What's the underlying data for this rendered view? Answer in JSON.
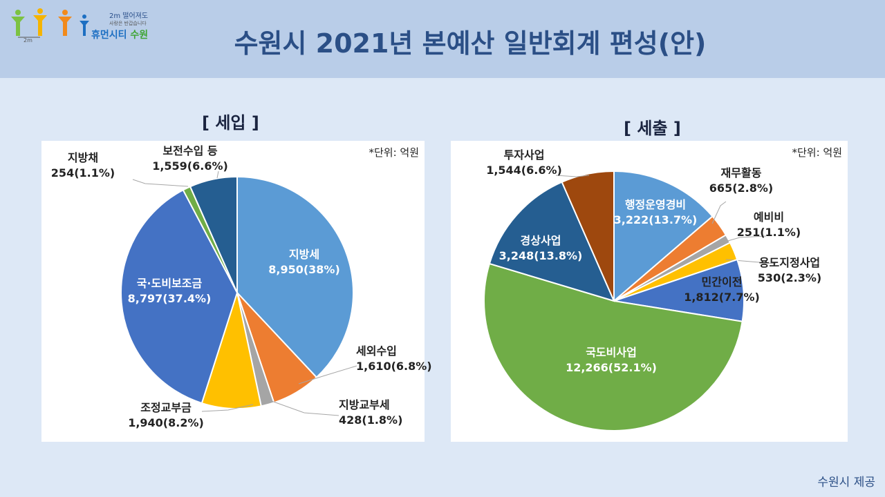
{
  "logo": {
    "tagline_line1": "2m 떨어져도",
    "tagline_line2": "사랑은 반갑습니다",
    "name_part1": "휴먼시티",
    "name_part2": "수원",
    "badge": "2m"
  },
  "header": {
    "title": "수원시 2021년 본예산 일반회계 편성(안)"
  },
  "footer": {
    "credit": "수원시 제공"
  },
  "chart_data": [
    {
      "type": "pie",
      "title": "[ 세입 ]",
      "unit_note": "*단위: 억원",
      "slices": [
        {
          "label": "지방세",
          "value": 8950,
          "value_text": "8,950(38%)",
          "color": "#5b9bd5"
        },
        {
          "label": "세외수입",
          "value": 1610,
          "value_text": "1,610(6.8%)",
          "color": "#ed7d31"
        },
        {
          "label": "지방교부세",
          "value": 428,
          "value_text": "428(1.8%)",
          "color": "#a5a5a5"
        },
        {
          "label": "조정교부금",
          "value": 1940,
          "value_text": "1,940(8.2%)",
          "color": "#ffc000"
        },
        {
          "label": "국·도비보조금",
          "value": 8797,
          "value_text": "8,797(37.4%)",
          "color": "#4472c4"
        },
        {
          "label": "지방채",
          "value": 254,
          "value_text": "254(1.1%)",
          "color": "#70ad47"
        },
        {
          "label": "보전수입 등",
          "value": 1559,
          "value_text": "1,559(6.6%)",
          "color": "#255e91"
        }
      ]
    },
    {
      "type": "pie",
      "title": "[ 세출 ]",
      "unit_note": "*단위: 억원",
      "slices": [
        {
          "label": "행정운영경비",
          "value": 3222,
          "value_text": "3,222(13.7%)",
          "color": "#5b9bd5"
        },
        {
          "label": "재무활동",
          "value": 665,
          "value_text": "665(2.8%)",
          "color": "#ed7d31"
        },
        {
          "label": "예비비",
          "value": 251,
          "value_text": "251(1.1%)",
          "color": "#a5a5a5"
        },
        {
          "label": "용도지정사업",
          "value": 530,
          "value_text": "530(2.3%)",
          "color": "#ffc000"
        },
        {
          "label": "민간이전",
          "value": 1812,
          "value_text": "1,812(7.7%)",
          "color": "#4472c4"
        },
        {
          "label": "국도비사업",
          "value": 12266,
          "value_text": "12,266(52.1%)",
          "color": "#70ad47"
        },
        {
          "label": "경상사업",
          "value": 3248,
          "value_text": "3,248(13.8%)",
          "color": "#255e91"
        },
        {
          "label": "투자사업",
          "value": 1544,
          "value_text": "1,544(6.6%)",
          "color": "#9e480e"
        }
      ]
    }
  ]
}
